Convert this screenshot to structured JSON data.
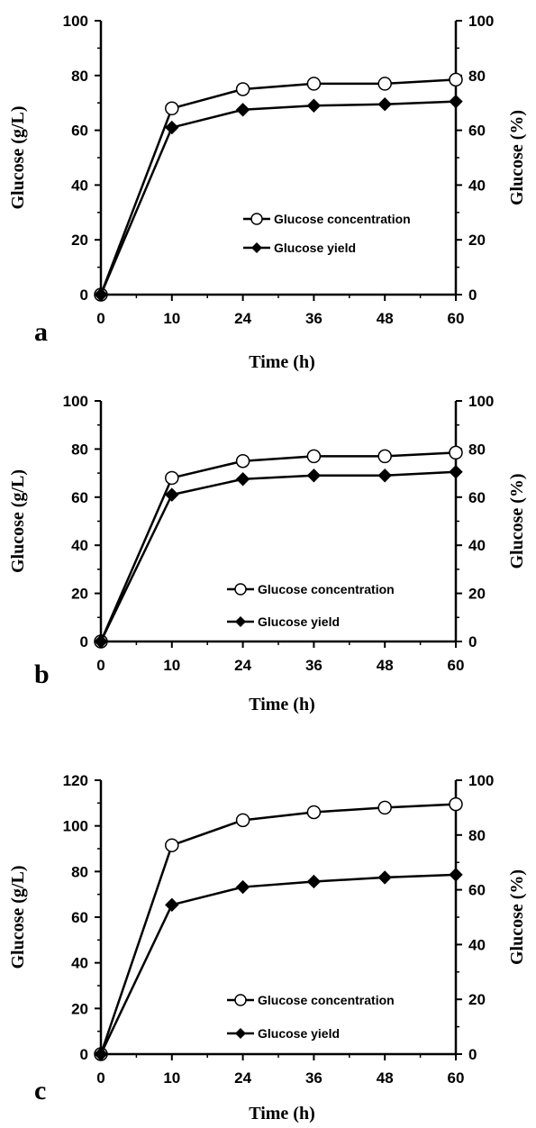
{
  "chart_data": [
    {
      "type": "line",
      "panel_label": "a",
      "x": [
        0,
        10,
        24,
        36,
        48,
        60
      ],
      "x_tick_labels": [
        "0",
        "10",
        "24",
        "36",
        "48",
        "60"
      ],
      "xlabel": "Time (h)",
      "ylabel": "Glucose (g/L)",
      "ylabel_right": "Glucose (%)",
      "ylim": [
        0,
        100
      ],
      "ylim_right": [
        0,
        100
      ],
      "yticks": [
        0,
        20,
        40,
        60,
        80,
        100
      ],
      "yticks_right": [
        0,
        20,
        40,
        60,
        80,
        100
      ],
      "legend_position": "center-right",
      "grid": false,
      "series": [
        {
          "name": "Glucose concentration",
          "marker": "open-circle",
          "axis": "left",
          "values": [
            0,
            68,
            75,
            77,
            77,
            78.5
          ]
        },
        {
          "name": "Glucose yield",
          "marker": "filled-diamond",
          "axis": "right",
          "values": [
            0,
            61,
            67.5,
            69,
            69.5,
            70.5
          ]
        }
      ]
    },
    {
      "type": "line",
      "panel_label": "b",
      "x": [
        0,
        10,
        24,
        36,
        48,
        60
      ],
      "x_tick_labels": [
        "0",
        "10",
        "24",
        "36",
        "48",
        "60"
      ],
      "xlabel": "Time (h)",
      "ylabel": "Glucose (g/L)",
      "ylabel_right": "Glucose (%)",
      "ylim": [
        0,
        100
      ],
      "ylim_right": [
        0,
        100
      ],
      "yticks": [
        0,
        20,
        40,
        60,
        80,
        100
      ],
      "yticks_right": [
        0,
        20,
        40,
        60,
        80,
        100
      ],
      "legend_position": "center-right",
      "grid": false,
      "series": [
        {
          "name": "Glucose concentration",
          "marker": "open-circle",
          "axis": "left",
          "values": [
            0,
            68,
            75,
            77,
            77,
            78.5
          ]
        },
        {
          "name": "Glucose yield",
          "marker": "filled-diamond",
          "axis": "right",
          "values": [
            0,
            61,
            67.5,
            69,
            69,
            70.5
          ]
        }
      ]
    },
    {
      "type": "line",
      "panel_label": "c",
      "x": [
        0,
        10,
        24,
        36,
        48,
        60
      ],
      "x_tick_labels": [
        "0",
        "10",
        "24",
        "36",
        "48",
        "60"
      ],
      "xlabel": "Time (h)",
      "ylabel": "Glucose (g/L)",
      "ylabel_right": "Glucose (%)",
      "ylim": [
        0,
        120
      ],
      "ylim_right": [
        0,
        100
      ],
      "yticks": [
        0,
        20,
        40,
        60,
        80,
        100,
        120
      ],
      "yticks_right": [
        0,
        20,
        40,
        60,
        80,
        100
      ],
      "legend_position": "bottom-right",
      "grid": false,
      "series": [
        {
          "name": "Glucose concentration",
          "marker": "open-circle",
          "axis": "left",
          "values": [
            0,
            91.5,
            102.5,
            106,
            108,
            109.5
          ]
        },
        {
          "name": "Glucose yield",
          "marker": "filled-diamond",
          "axis": "right",
          "values": [
            0,
            54.5,
            61,
            63,
            64.5,
            65.5
          ]
        }
      ]
    }
  ]
}
